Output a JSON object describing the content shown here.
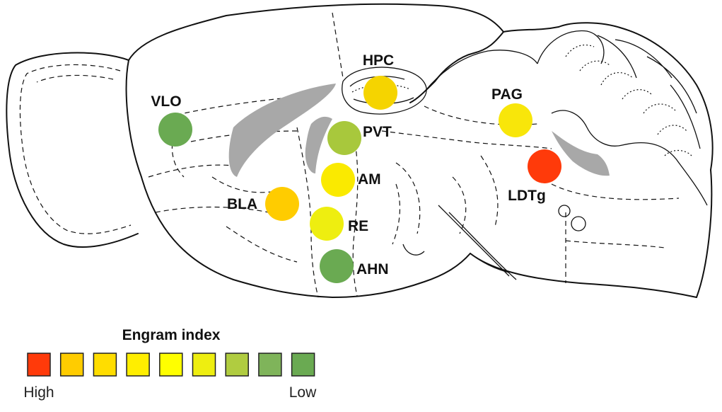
{
  "figure": {
    "type": "brain-map",
    "description_label": "Engram index"
  },
  "regions": [
    {
      "label": "VLO",
      "color": "#6aaa52"
    },
    {
      "label": "HPC",
      "color": "#f5d400"
    },
    {
      "label": "PVT",
      "color": "#a8c83c"
    },
    {
      "label": "PAG",
      "color": "#f8e60a"
    },
    {
      "label": "AM",
      "color": "#faea00"
    },
    {
      "label": "LDTg",
      "color": "#ff3a0a"
    },
    {
      "label": "BLA",
      "color": "#ffcc00"
    },
    {
      "label": "RE",
      "color": "#eeee10"
    },
    {
      "label": "AHN",
      "color": "#6aaa52"
    }
  ],
  "legend": {
    "title": "Engram index",
    "high_label": "High",
    "low_label": "Low",
    "swatches": [
      "#ff3a0a",
      "#ffcc00",
      "#ffdd00",
      "#ffee00",
      "#ffff00",
      "#eeee10",
      "#b0cc40",
      "#7fb45a",
      "#6aaa52"
    ]
  }
}
